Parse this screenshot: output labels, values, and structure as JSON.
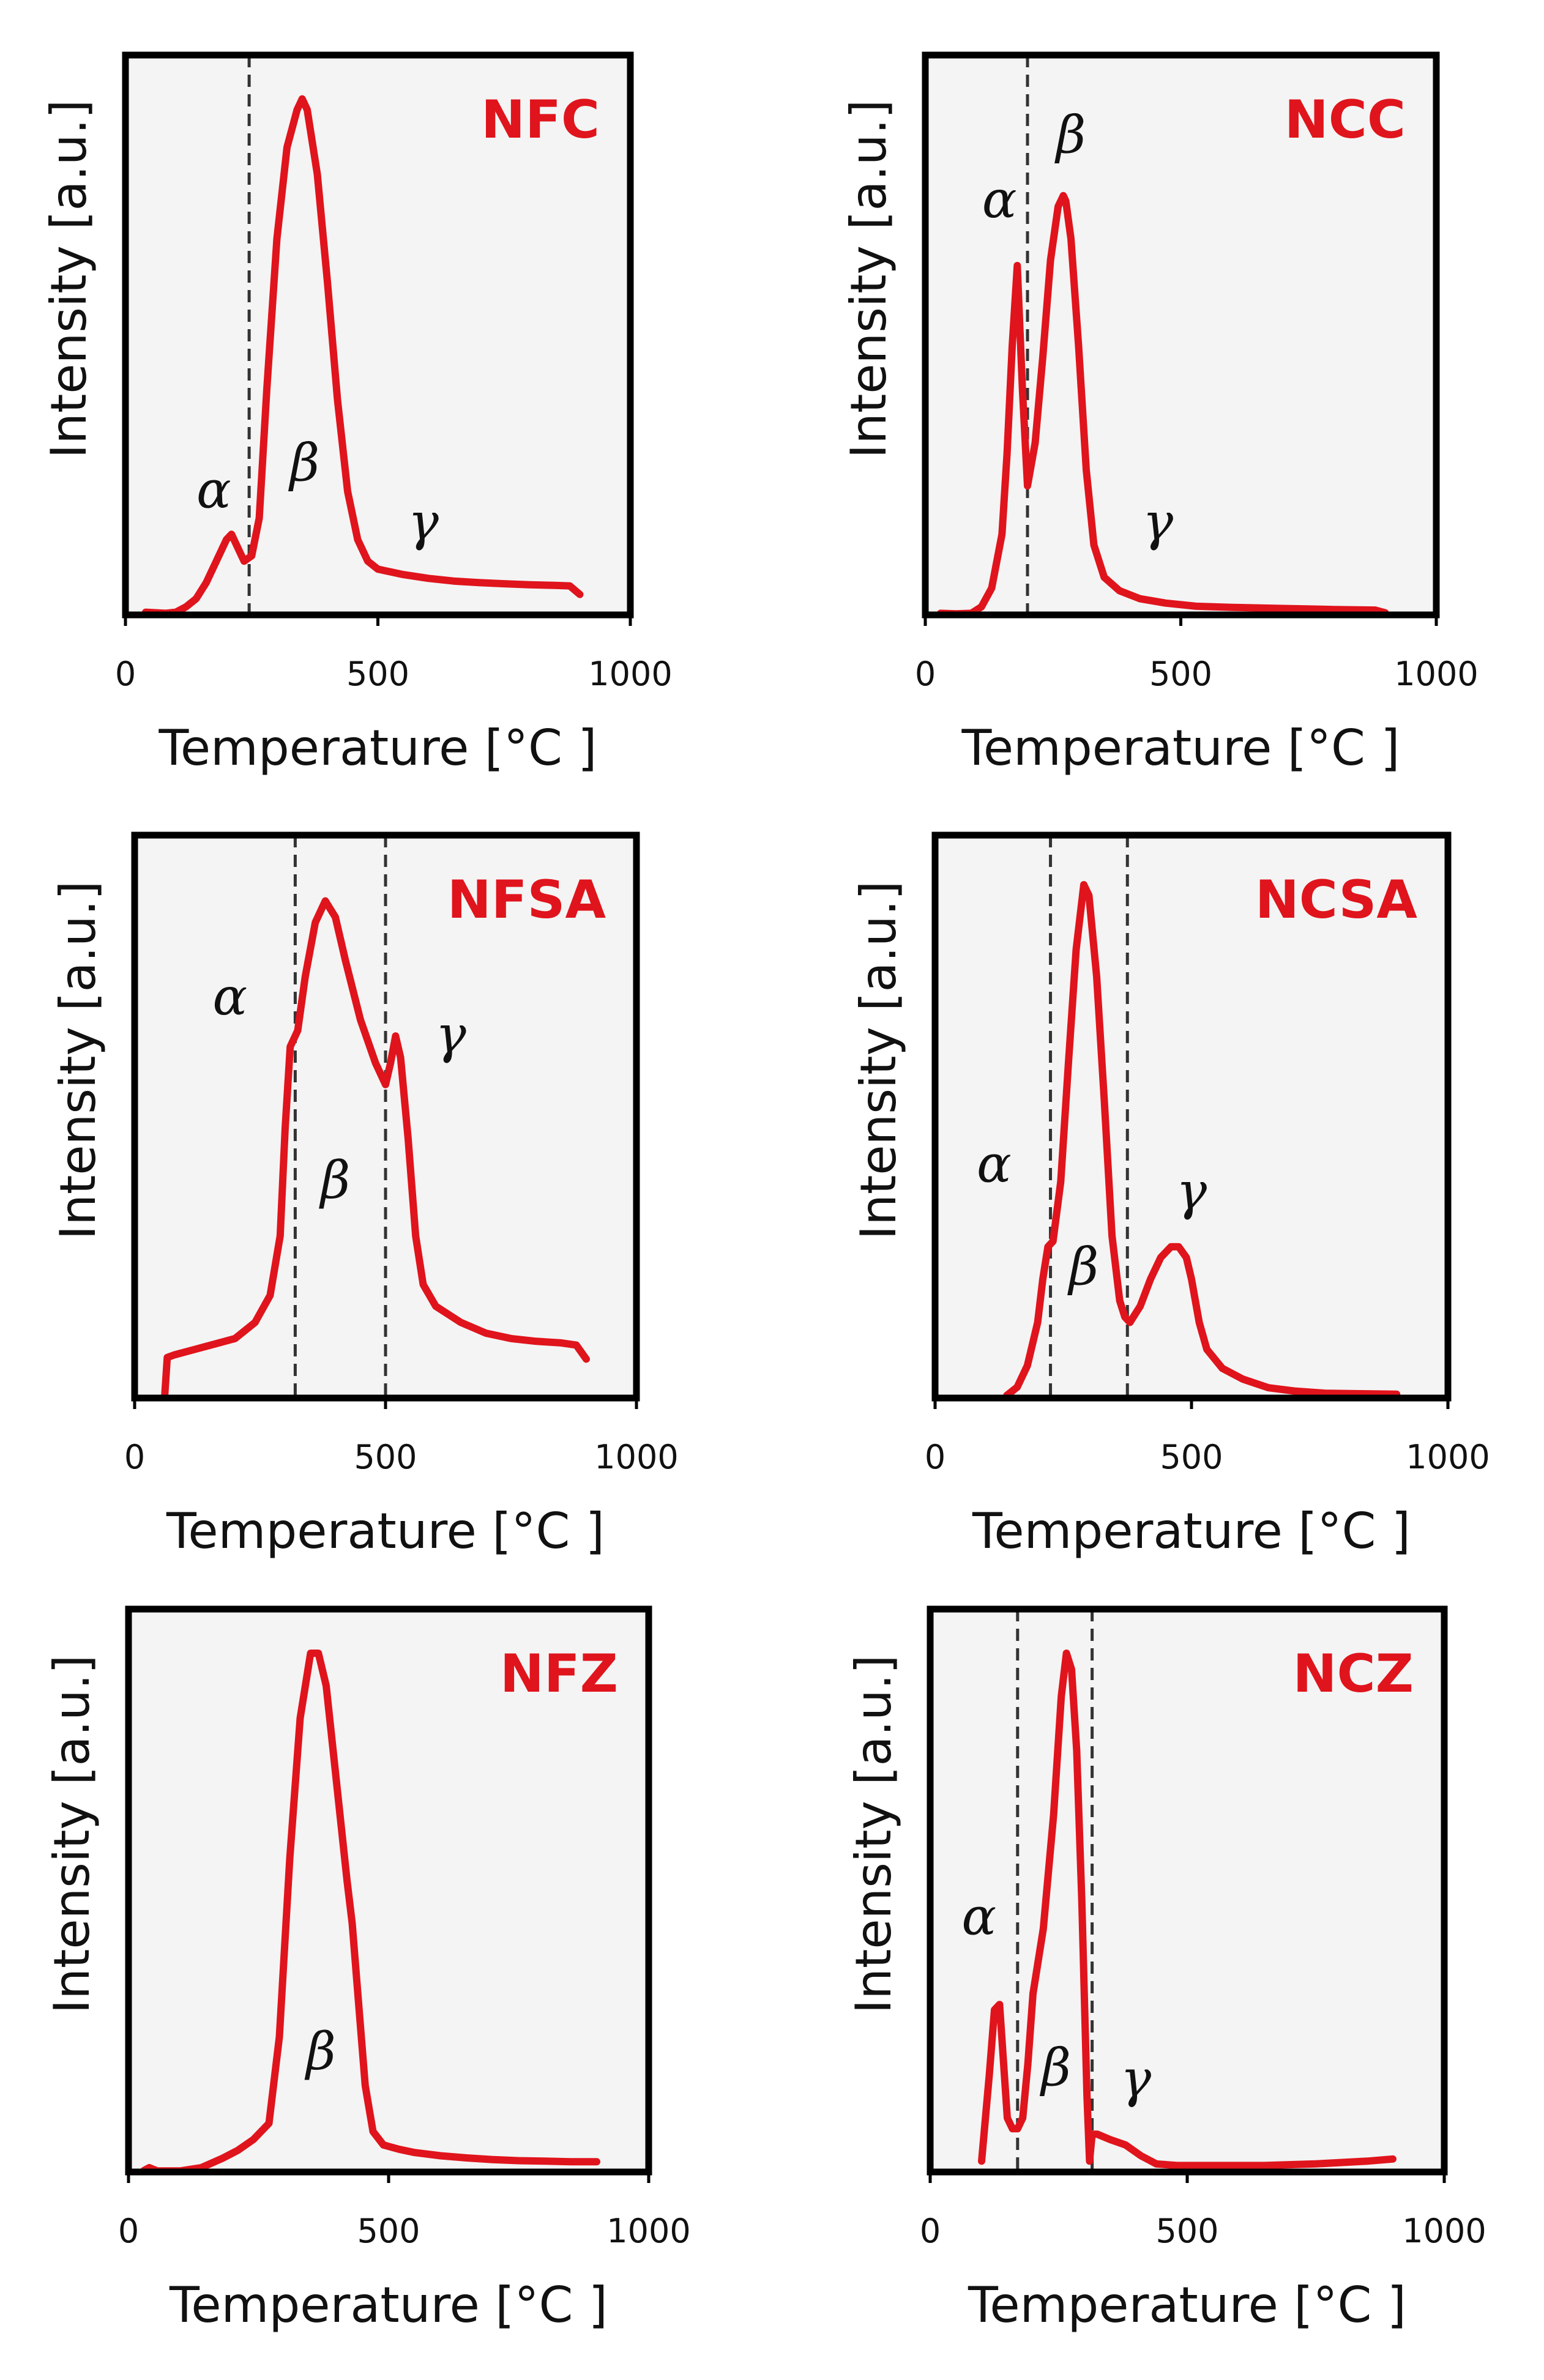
{
  "chart_data": [
    {
      "type": "line",
      "title": "NFC",
      "xlabel": "Temperature [°C ]",
      "ylabel": "Intensity [a.u.]",
      "xlim": [
        0,
        1000
      ],
      "ylim": [
        0,
        100
      ],
      "xticks": [
        "0",
        "500",
        "1000"
      ],
      "dividers": [
        245
      ],
      "series": [
        {
          "name": "NFC",
          "color": "#e0141c",
          "x": [
            40,
            60,
            80,
            100,
            120,
            140,
            160,
            180,
            200,
            210,
            220,
            235,
            250,
            265,
            280,
            300,
            320,
            340,
            350,
            360,
            380,
            400,
            420,
            440,
            460,
            480,
            500,
            550,
            600,
            650,
            700,
            750,
            800,
            850,
            880,
            900
          ],
          "y": [
            0.5,
            0.4,
            0.3,
            0.5,
            1.5,
            3,
            6,
            10,
            14,
            15,
            13,
            10,
            11,
            18,
            42,
            70,
            87,
            94,
            96,
            94,
            82,
            62,
            40,
            23,
            14,
            10,
            8.5,
            7.5,
            6.8,
            6.3,
            6.0,
            5.8,
            5.6,
            5.5,
            5.4,
            3.8
          ]
        }
      ],
      "annotations": [
        {
          "text": "α",
          "x": 175,
          "y": 20
        },
        {
          "text": "β",
          "x": 355,
          "y": 25
        },
        {
          "text": "γ",
          "x": 590,
          "y": 14
        }
      ]
    },
    {
      "type": "line",
      "title": "NCC",
      "xlabel": "Temperature [°C ]",
      "ylabel": "Intensity [a.u.]",
      "xlim": [
        0,
        1000
      ],
      "ylim": [
        0,
        100
      ],
      "xticks": [
        "0",
        "500",
        "1000"
      ],
      "dividers": [
        200
      ],
      "series": [
        {
          "name": "NCC",
          "color": "#e0141c",
          "x": [
            30,
            60,
            90,
            110,
            130,
            150,
            160,
            170,
            180,
            190,
            200,
            215,
            230,
            245,
            260,
            270,
            275,
            285,
            300,
            315,
            330,
            350,
            380,
            420,
            470,
            530,
            600,
            700,
            800,
            880,
            900
          ],
          "y": [
            0.3,
            0.2,
            0.3,
            1.5,
            5,
            15,
            30,
            50,
            65,
            42,
            24,
            32,
            48,
            66,
            76,
            78,
            77,
            70,
            50,
            27,
            13,
            7,
            4.5,
            3.0,
            2.2,
            1.6,
            1.4,
            1.2,
            1.0,
            0.9,
            0.4
          ]
        }
      ],
      "annotations": [
        {
          "text": "α",
          "x": 145,
          "y": 74
        },
        {
          "text": "β",
          "x": 285,
          "y": 86
        },
        {
          "text": "γ",
          "x": 455,
          "y": 14
        }
      ]
    },
    {
      "type": "line",
      "title": "NFSA",
      "xlabel": "Temperature [°C ]",
      "ylabel": "Intensity [a.u.]",
      "xlim": [
        0,
        1000
      ],
      "ylim": [
        0,
        100
      ],
      "xticks": [
        "0",
        "500",
        "1000"
      ],
      "dividers": [
        320,
        500
      ],
      "series": [
        {
          "name": "NFSA",
          "color": "#e0141c",
          "x": [
            60,
            65,
            80,
            120,
            160,
            200,
            240,
            270,
            290,
            300,
            310,
            325,
            340,
            360,
            380,
            400,
            420,
            450,
            480,
            500,
            510,
            520,
            530,
            545,
            560,
            575,
            600,
            650,
            700,
            750,
            800,
            850,
            880,
            900
          ],
          "y": [
            0.5,
            7.5,
            8,
            9,
            10,
            11,
            14,
            19,
            30,
            50,
            65,
            68,
            78,
            88,
            92,
            89,
            81,
            70,
            62,
            58,
            62,
            67,
            63,
            48,
            30,
            21,
            17,
            14,
            12,
            11,
            10.5,
            10.2,
            9.8,
            7.2
          ]
        }
      ],
      "annotations": [
        {
          "text": "α",
          "x": 190,
          "y": 71
        },
        {
          "text": "β",
          "x": 400,
          "y": 37
        },
        {
          "text": "γ",
          "x": 630,
          "y": 64
        }
      ]
    },
    {
      "type": "line",
      "title": "NCSA",
      "xlabel": "Temperature [°C ]",
      "ylabel": "Intensity [a.u.]",
      "xlim": [
        0,
        1000
      ],
      "ylim": [
        0,
        100
      ],
      "xticks": [
        "0",
        "500",
        "1000"
      ],
      "dividers": [
        225,
        375
      ],
      "series": [
        {
          "name": "NCSA",
          "color": "#e0141c",
          "x": [
            140,
            160,
            180,
            200,
            210,
            220,
            230,
            245,
            260,
            275,
            290,
            300,
            315,
            330,
            345,
            360,
            370,
            380,
            400,
            420,
            440,
            460,
            475,
            490,
            500,
            515,
            530,
            560,
            600,
            650,
            700,
            760,
            820,
            900
          ],
          "y": [
            0.5,
            2,
            6,
            14,
            22,
            28,
            29,
            40,
            62,
            83,
            95,
            93,
            78,
            55,
            30,
            18,
            15,
            14,
            17,
            22,
            26,
            28,
            28,
            26,
            22,
            14,
            9,
            5.5,
            3.5,
            1.9,
            1.3,
            0.9,
            0.8,
            0.7
          ]
        }
      ],
      "annotations": [
        {
          "text": "α",
          "x": 115,
          "y": 40
        },
        {
          "text": "β",
          "x": 290,
          "y": 21
        },
        {
          "text": "γ",
          "x": 500,
          "y": 35
        }
      ]
    },
    {
      "type": "line",
      "title": "NFZ",
      "xlabel": "Temperature [°C ]",
      "ylabel": "Intensity [a.u.]",
      "xlim": [
        0,
        1000
      ],
      "ylim": [
        0,
        100
      ],
      "xticks": [
        "0",
        "500",
        "1000"
      ],
      "dividers": [],
      "series": [
        {
          "name": "NFZ",
          "color": "#e0141c",
          "x": [
            30,
            40,
            55,
            100,
            140,
            180,
            210,
            240,
            270,
            290,
            310,
            330,
            350,
            365,
            380,
            400,
            420,
            430,
            440,
            455,
            470,
            490,
            520,
            550,
            600,
            650,
            700,
            750,
            800,
            850,
            900
          ],
          "y": [
            0.3,
            0.8,
            0.2,
            0.2,
            0.8,
            2.5,
            4,
            6,
            9,
            25,
            58,
            84,
            96,
            96,
            90,
            72,
            54,
            46,
            34,
            16,
            7.5,
            5,
            4.2,
            3.6,
            3.0,
            2.6,
            2.3,
            2.1,
            2.0,
            1.9,
            1.9
          ]
        }
      ],
      "annotations": [
        {
          "text": "β",
          "x": 370,
          "y": 19
        }
      ]
    },
    {
      "type": "line",
      "title": "NCZ",
      "xlabel": "Temperature [°C ]",
      "ylabel": "Intensity [a.u.]",
      "xlim": [
        0,
        1000
      ],
      "ylim": [
        0,
        100
      ],
      "xticks": [
        "0",
        "500",
        "1000"
      ],
      "dividers": [
        170,
        315
      ],
      "series": [
        {
          "name": "NCZ",
          "color": "#e0141c",
          "x": [
            100,
            115,
            125,
            135,
            150,
            160,
            170,
            180,
            190,
            200,
            220,
            240,
            255,
            265,
            275,
            285,
            295,
            305,
            310,
            315,
            325,
            350,
            380,
            410,
            440,
            480,
            550,
            650,
            750,
            850,
            900
          ],
          "y": [
            2,
            18,
            30,
            31,
            10,
            8,
            8,
            10,
            20,
            33,
            45,
            66,
            88,
            96,
            93,
            78,
            50,
            14,
            2,
            7,
            7,
            6,
            5,
            3,
            1.5,
            1.2,
            1.2,
            1.2,
            1.5,
            2.0,
            2.4
          ]
        }
      ],
      "annotations": [
        {
          "text": "α",
          "x": 95,
          "y": 44
        },
        {
          "text": "β",
          "x": 245,
          "y": 16
        },
        {
          "text": "γ",
          "x": 400,
          "y": 14
        }
      ]
    }
  ]
}
